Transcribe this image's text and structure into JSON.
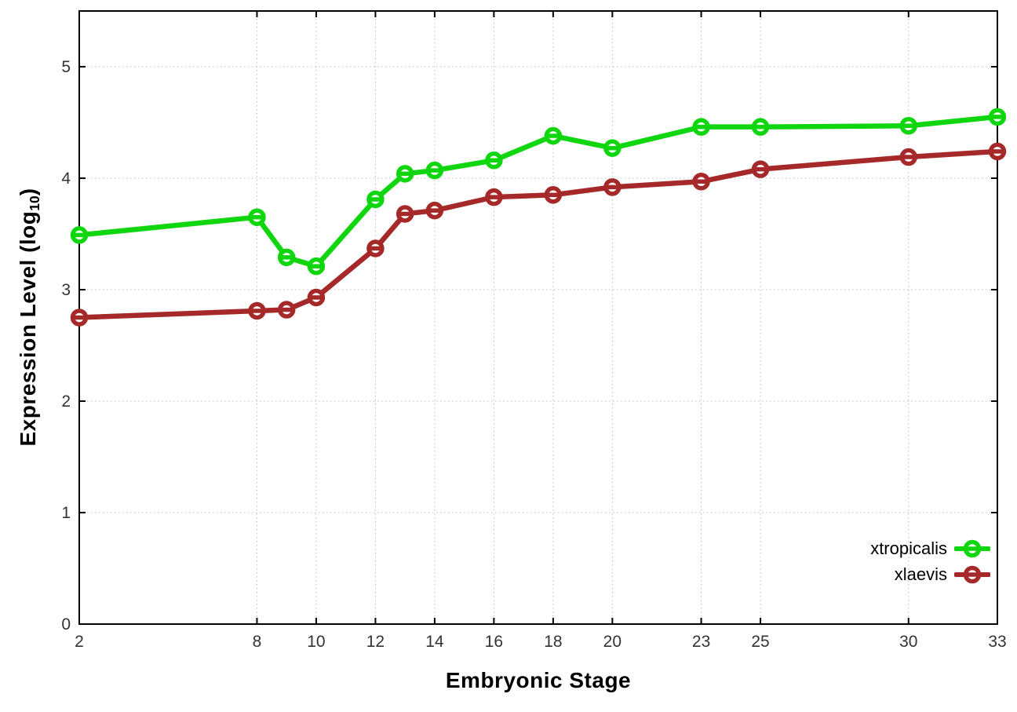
{
  "figure": {
    "background": "#ffffff",
    "frame_color": "#000000",
    "grid_color": "#bdbdbd",
    "tick_label_color": "#333333",
    "axis_title_color": "#000000"
  },
  "axes": {
    "xlabel": "Embryonic Stage",
    "ylabel_prefix": "Expression Level (log",
    "ylabel_sub": "10",
    "ylabel_suffix": ")"
  },
  "legend": {
    "position": "inside-bottom-right",
    "entries": [
      {
        "label": "xtropicalis",
        "color": "#0fd60f"
      },
      {
        "label": "xlaevis",
        "color": "#a62929"
      }
    ]
  },
  "chart_data": {
    "type": "line",
    "title": "",
    "xlabel": "Embryonic Stage",
    "ylabel": "Expression Level (log10)",
    "x": [
      2,
      8,
      9,
      10,
      12,
      13,
      14,
      16,
      18,
      20,
      23,
      25,
      30,
      33
    ],
    "x_ticks": [
      2,
      8,
      10,
      12,
      14,
      16,
      18,
      20,
      23,
      25,
      30,
      33
    ],
    "y_ticks": [
      0,
      1,
      2,
      3,
      4,
      5
    ],
    "xlim": [
      2,
      33
    ],
    "ylim": [
      0,
      5.5
    ],
    "grid": true,
    "grid_style": "dotted",
    "marker": "open-circle-with-dash",
    "legend_position": "inside-bottom-right",
    "series": [
      {
        "name": "xtropicalis",
        "color": "#0fd60f",
        "values": [
          3.49,
          3.65,
          3.29,
          3.21,
          3.81,
          4.04,
          4.07,
          4.16,
          4.38,
          4.27,
          4.46,
          4.46,
          4.47,
          4.55
        ]
      },
      {
        "name": "xlaevis",
        "color": "#a62929",
        "values": [
          2.75,
          2.81,
          2.82,
          2.93,
          3.37,
          3.68,
          3.71,
          3.83,
          3.85,
          3.92,
          3.97,
          4.08,
          4.19,
          4.24
        ]
      }
    ]
  }
}
